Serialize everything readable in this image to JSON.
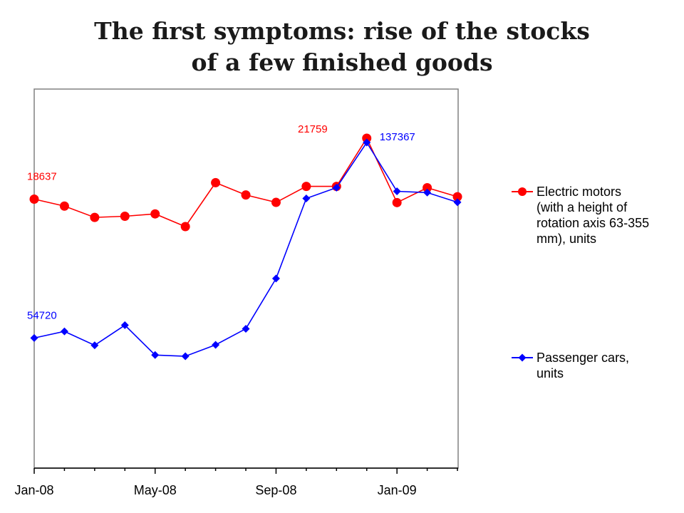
{
  "title": {
    "line1": "The first symptoms: rise of the stocks",
    "line2": "of a few finished goods"
  },
  "chart_data": {
    "type": "line",
    "x": [
      "Jan-08",
      "Feb-08",
      "Mar-08",
      "Apr-08",
      "May-08",
      "Jun-08",
      "Jul-08",
      "Aug-08",
      "Sep-08",
      "Oct-08",
      "Nov-08",
      "Dec-08",
      "Jan-09",
      "Feb-09",
      "Mar-09"
    ],
    "x_tick_labels": [
      "Jan-08",
      "May-08",
      "Sep-08",
      "Jan-09"
    ],
    "grid": false,
    "legend_position": "right",
    "series": [
      {
        "name_lines": [
          "Electric motors",
          "(with a height of",
          "rotation axis 63-355",
          "mm), units"
        ],
        "color": "#ff0000",
        "marker": "circle",
        "values": [
          18637,
          18280,
          17700,
          17760,
          17880,
          17230,
          19480,
          18850,
          18470,
          19290,
          19290,
          21759,
          18460,
          19220,
          18760
        ],
        "labels": [
          {
            "index": 0,
            "text": "18637"
          },
          {
            "index": 11,
            "text": "21759"
          }
        ]
      },
      {
        "name_lines": [
          "Passenger cars,",
          "units"
        ],
        "color": "#0000ff",
        "marker": "diamond",
        "values": [
          54720,
          57510,
          51650,
          60130,
          47510,
          47000,
          51830,
          58610,
          79860,
          113730,
          118290,
          137367,
          116730,
          116200,
          112110
        ],
        "labels": [
          {
            "index": 0,
            "text": "54720"
          },
          {
            "index": 11,
            "text": "137367"
          }
        ]
      }
    ]
  }
}
